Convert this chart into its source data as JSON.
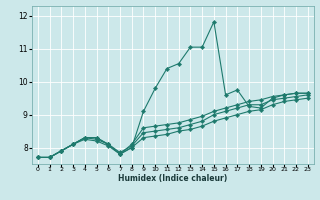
{
  "xlabel": "Humidex (Indice chaleur)",
  "ylabel": "",
  "xlim": [
    -0.5,
    23.5
  ],
  "ylim": [
    7.5,
    12.3
  ],
  "yticks": [
    8,
    9,
    10,
    11,
    12
  ],
  "xticks": [
    0,
    1,
    2,
    3,
    4,
    5,
    6,
    7,
    8,
    9,
    10,
    11,
    12,
    13,
    14,
    15,
    16,
    17,
    18,
    19,
    20,
    21,
    22,
    23
  ],
  "background_color": "#cce8ea",
  "line_color": "#1e7a6d",
  "grid_color": "#ffffff",
  "series": [
    [
      7.7,
      7.7,
      7.9,
      8.1,
      8.3,
      8.3,
      8.1,
      7.8,
      8.0,
      9.1,
      9.8,
      10.4,
      10.55,
      11.05,
      11.05,
      11.82,
      9.6,
      9.75,
      9.25,
      9.2,
      9.5,
      9.6,
      9.65,
      9.65
    ],
    [
      7.7,
      7.7,
      7.9,
      8.1,
      8.3,
      8.3,
      8.1,
      7.8,
      8.1,
      8.6,
      8.65,
      8.7,
      8.75,
      8.85,
      8.95,
      9.1,
      9.2,
      9.3,
      9.4,
      9.45,
      9.55,
      9.6,
      9.65,
      9.65
    ],
    [
      7.7,
      7.7,
      7.9,
      8.1,
      8.3,
      8.25,
      8.1,
      7.85,
      8.05,
      8.45,
      8.5,
      8.55,
      8.6,
      8.7,
      8.8,
      9.0,
      9.1,
      9.2,
      9.3,
      9.3,
      9.45,
      9.5,
      9.55,
      9.6
    ],
    [
      7.7,
      7.7,
      7.9,
      8.1,
      8.25,
      8.2,
      8.05,
      7.8,
      8.0,
      8.3,
      8.35,
      8.4,
      8.5,
      8.55,
      8.65,
      8.8,
      8.9,
      9.0,
      9.1,
      9.15,
      9.3,
      9.4,
      9.45,
      9.5
    ]
  ]
}
